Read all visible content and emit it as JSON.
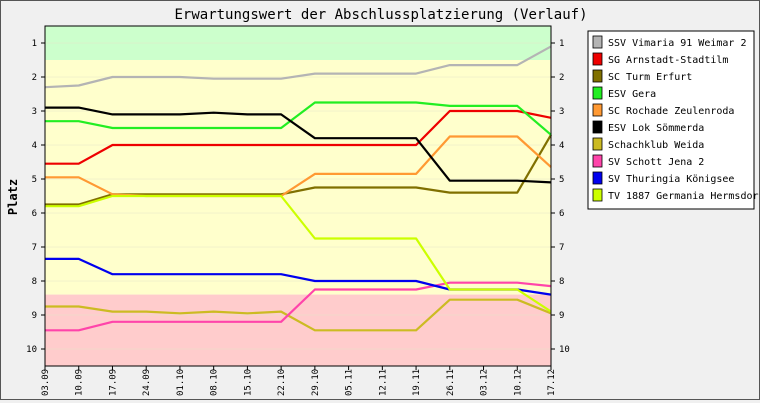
{
  "chart_data": {
    "type": "line",
    "title": "Erwartungswert der Abschlussplatzierung (Verlauf)",
    "ylabel": "Platz",
    "xlabel": "",
    "ylim": [
      10.5,
      0.5
    ],
    "y_ticks": [
      "1",
      "2",
      "3",
      "4",
      "5",
      "6",
      "7",
      "8",
      "9",
      "10"
    ],
    "x": [
      "03.09",
      "10.09",
      "17.09",
      "24.09",
      "01.10",
      "08.10",
      "15.10",
      "22.10",
      "29.10",
      "05.11",
      "12.11",
      "19.11",
      "26.11",
      "03.12",
      "10.12",
      "17.12"
    ],
    "bands": [
      {
        "name": "promotion",
        "color": "#ccffcc",
        "from": 0.5,
        "to": 1.5
      },
      {
        "name": "middle",
        "color": "#ffffcc",
        "from": 1.5,
        "to": 8.4
      },
      {
        "name": "relegation",
        "color": "#ffcccc",
        "from": 8.4,
        "to": 10.5
      }
    ],
    "legend_position": "right",
    "series": [
      {
        "name": "SSV Vimaria 91 Weimar 2",
        "color": "#b4b4b4",
        "values": [
          2.3,
          2.25,
          2.0,
          2.0,
          2.0,
          2.05,
          2.05,
          2.05,
          1.9,
          1.9,
          1.9,
          1.9,
          1.65,
          1.65,
          1.65,
          1.1
        ]
      },
      {
        "name": "SG Arnstadt-Stadtilm",
        "color": "#ee0000",
        "values": [
          4.55,
          4.55,
          4.0,
          4.0,
          4.0,
          4.0,
          4.0,
          4.0,
          4.0,
          4.0,
          4.0,
          4.0,
          3.0,
          3.0,
          3.0,
          3.2
        ]
      },
      {
        "name": "SC Turm Erfurt",
        "color": "#807000",
        "values": [
          5.75,
          5.75,
          5.45,
          5.45,
          5.45,
          5.45,
          5.45,
          5.45,
          5.25,
          5.25,
          5.25,
          5.25,
          5.4,
          5.4,
          5.4,
          3.7
        ]
      },
      {
        "name": "ESV Gera",
        "color": "#22ee22",
        "values": [
          3.3,
          3.3,
          3.5,
          3.5,
          3.5,
          3.5,
          3.5,
          3.5,
          2.75,
          2.75,
          2.75,
          2.75,
          2.85,
          2.85,
          2.85,
          3.7
        ]
      },
      {
        "name": "SC Rochade Zeulenroda",
        "color": "#ff9933",
        "values": [
          4.95,
          4.95,
          5.45,
          5.5,
          5.5,
          5.5,
          5.5,
          5.5,
          4.85,
          4.85,
          4.85,
          4.85,
          3.75,
          3.75,
          3.75,
          4.65
        ]
      },
      {
        "name": "ESV Lok Sömmerda",
        "color": "#000000",
        "values": [
          2.9,
          2.9,
          3.1,
          3.1,
          3.1,
          3.05,
          3.1,
          3.1,
          3.8,
          3.8,
          3.8,
          3.8,
          5.05,
          5.05,
          5.05,
          5.1
        ]
      },
      {
        "name": "Schachklub Weida",
        "color": "#ccbb22",
        "values": [
          8.75,
          8.75,
          8.9,
          8.9,
          8.95,
          8.9,
          8.95,
          8.9,
          9.45,
          9.45,
          9.45,
          9.45,
          8.55,
          8.55,
          8.55,
          8.95
        ]
      },
      {
        "name": "SV Schott Jena 2",
        "color": "#ff44aa",
        "values": [
          9.45,
          9.45,
          9.2,
          9.2,
          9.2,
          9.2,
          9.2,
          9.2,
          8.25,
          8.25,
          8.25,
          8.25,
          8.05,
          8.05,
          8.05,
          8.15
        ]
      },
      {
        "name": "SV Thuringia Königsee",
        "color": "#0000ee",
        "values": [
          7.35,
          7.35,
          7.8,
          7.8,
          7.8,
          7.8,
          7.8,
          7.8,
          8.0,
          8.0,
          8.0,
          8.0,
          8.25,
          8.25,
          8.25,
          8.4
        ]
      },
      {
        "name": "TV 1887 Germania Hermsdorf",
        "color": "#ccff00",
        "values": [
          5.8,
          5.8,
          5.5,
          5.5,
          5.5,
          5.5,
          5.5,
          5.5,
          6.75,
          6.75,
          6.75,
          6.75,
          8.25,
          8.25,
          8.25,
          8.9
        ]
      }
    ]
  }
}
